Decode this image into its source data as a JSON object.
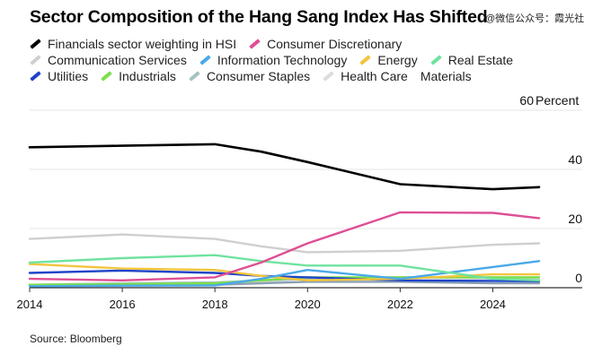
{
  "title": "Sector Composition of the Hang Sang Index Has Shifted",
  "watermark": "@微信公众号：霞光社",
  "source": "Source: Bloomberg",
  "chart_data": {
    "type": "line",
    "title": "Sector Composition of the Hang Sang Index Has Shifted",
    "ylabel": "Percent",
    "xlim": [
      2014,
      2025
    ],
    "ylim": [
      0,
      60
    ],
    "x_ticks": [
      2014,
      2016,
      2018,
      2020,
      2022,
      2024
    ],
    "y_ticks": [
      0,
      20,
      40,
      60
    ],
    "y_tick_labels": [
      "0",
      "20",
      "40",
      "60"
    ],
    "y_unit_label": "Percent",
    "grid": "horizontal",
    "legend_position": "top",
    "x": [
      2014,
      2016,
      2018,
      2019,
      2020,
      2022,
      2024,
      2025
    ],
    "series": [
      {
        "name": "Financials sector weighting in HSI",
        "color": "#000000",
        "values": [
          47.5,
          48,
          48.5,
          46,
          42.5,
          35,
          33.3,
          34
        ]
      },
      {
        "name": "Consumer Discretionary",
        "color": "#de4f94",
        "values": [
          3,
          2.5,
          3.5,
          8.5,
          15,
          25.5,
          25.3,
          23.5
        ]
      },
      {
        "name": "Communication Services",
        "color": "#cfcfcf",
        "values": [
          16.5,
          18,
          16.5,
          14,
          12,
          12.5,
          14.5,
          15
        ]
      },
      {
        "name": "Information Technology",
        "color": "#4aa9e8",
        "values": [
          0.5,
          0.7,
          0.8,
          3,
          6,
          3,
          7,
          9
        ]
      },
      {
        "name": "Energy",
        "color": "#f2c53d",
        "values": [
          8,
          6.5,
          6,
          4,
          2.5,
          3,
          4.5,
          4.5
        ]
      },
      {
        "name": "Real Estate",
        "color": "#6fe39f",
        "values": [
          8.5,
          10,
          11,
          9,
          7.5,
          7.5,
          3,
          2.5
        ]
      },
      {
        "name": "Utilities",
        "color": "#1f44c9",
        "values": [
          5,
          5.8,
          5,
          4,
          3.5,
          2.5,
          2.3,
          2.2
        ]
      },
      {
        "name": "Industrials",
        "color": "#7ce04a",
        "values": [
          1,
          1.2,
          1.5,
          2.5,
          3.5,
          3.5,
          3.5,
          3.5
        ]
      },
      {
        "name": "Consumer Staples",
        "color": "#a5c2c0",
        "values": [
          1,
          1.5,
          1.8,
          2.5,
          3,
          3.5,
          3.5,
          3.5
        ]
      },
      {
        "name": "Health Care",
        "color": "#dcdcdc",
        "values": [
          0.5,
          0.5,
          0.8,
          2,
          3,
          3.5,
          3,
          3
        ]
      },
      {
        "name": "Materials",
        "color": "#8aa0b5",
        "values": [
          1,
          1,
          1,
          1.5,
          2,
          2,
          1.5,
          1.5
        ]
      }
    ]
  },
  "legend_rows": [
    [
      0,
      1
    ],
    [
      2,
      3,
      4,
      5
    ],
    [
      6,
      7,
      8,
      9,
      10
    ]
  ]
}
